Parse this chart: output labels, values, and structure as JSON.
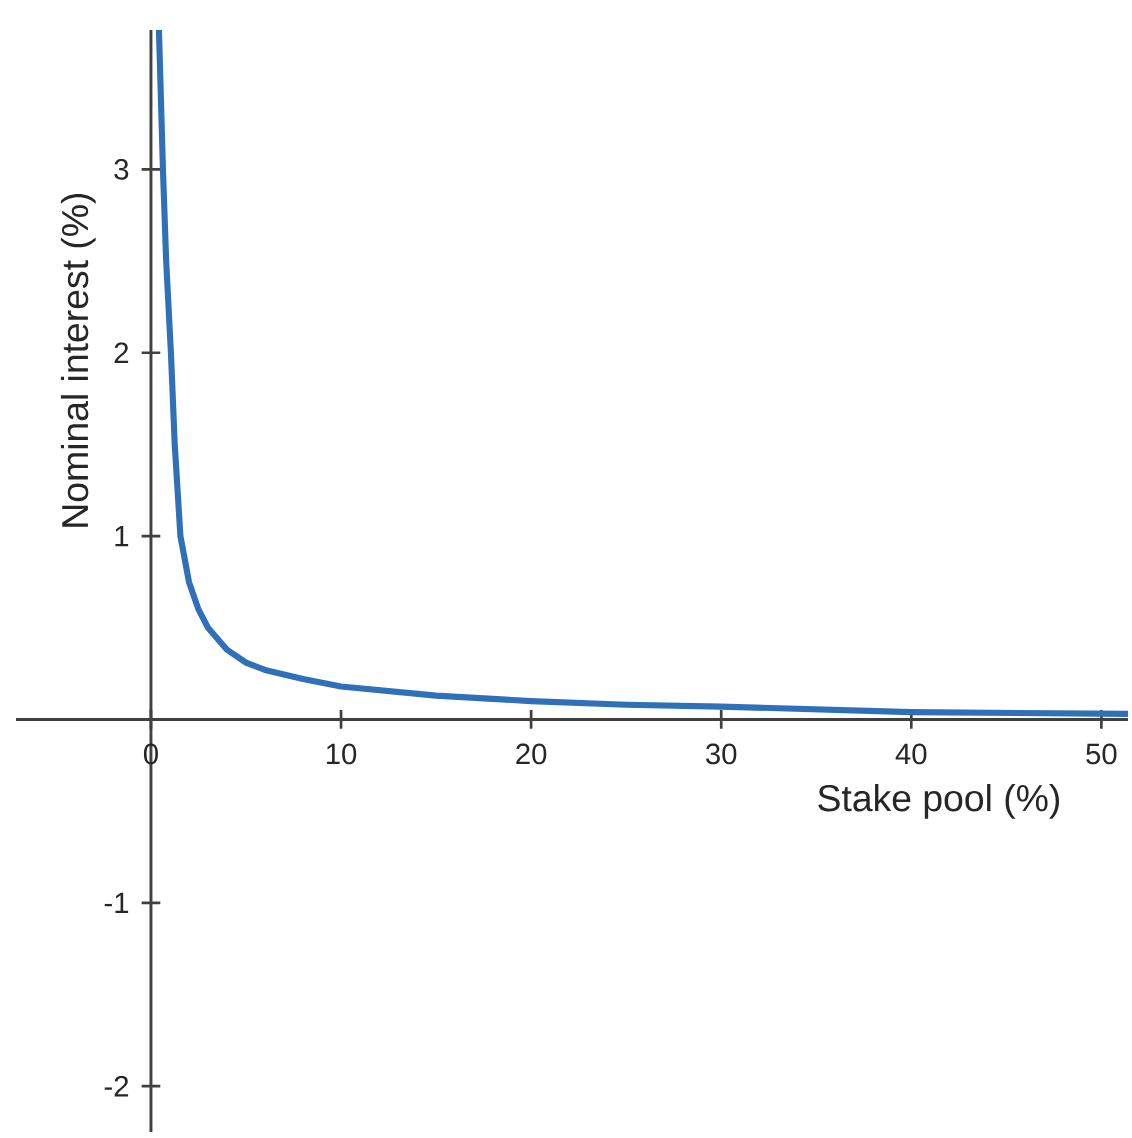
{
  "chart_data": {
    "type": "line",
    "xlabel": "Stake pool (%)",
    "ylabel": "Nominal interest (%)",
    "x": [
      0.42,
      0.63,
      0.8,
      1.05,
      1.25,
      1.55,
      2,
      2.5,
      3,
      4,
      5,
      6,
      8,
      10,
      15,
      20,
      25,
      30,
      40,
      51.4
    ],
    "values": [
      3.76,
      3.0,
      2.5,
      2.0,
      1.5,
      1.0,
      0.75,
      0.6,
      0.5,
      0.38,
      0.31,
      0.27,
      0.22,
      0.18,
      0.13,
      0.1,
      0.08,
      0.07,
      0.04,
      0.03
    ],
    "color": "#3070b8",
    "xlim": [
      -7.1,
      51.4
    ],
    "ylim": [
      -2.25,
      3.76
    ],
    "xticks": [
      0,
      10,
      20,
      30,
      40,
      50
    ],
    "yticks": [
      -2,
      -1,
      1,
      2,
      3
    ],
    "grid": false
  }
}
